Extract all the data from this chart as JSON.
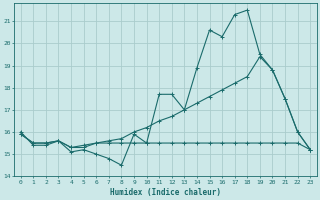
{
  "title": "",
  "xlabel": "Humidex (Indice chaleur)",
  "ylabel": "",
  "bg_color": "#cce8e8",
  "grid_color": "#aacccc",
  "line_color": "#1a6b6b",
  "xlim": [
    -0.5,
    23.5
  ],
  "ylim": [
    14,
    21.8
  ],
  "yticks": [
    14,
    15,
    16,
    17,
    18,
    19,
    20,
    21
  ],
  "xticks": [
    0,
    1,
    2,
    3,
    4,
    5,
    6,
    7,
    8,
    9,
    10,
    11,
    12,
    13,
    14,
    15,
    16,
    17,
    18,
    19,
    20,
    21,
    22,
    23
  ],
  "series1_x": [
    0,
    1,
    2,
    3,
    4,
    5,
    6,
    7,
    8,
    9,
    10,
    11,
    12,
    13,
    14,
    15,
    16,
    17,
    18,
    19,
    20,
    21,
    22,
    23
  ],
  "series1_y": [
    16.0,
    15.4,
    15.4,
    15.6,
    15.1,
    15.2,
    15.0,
    14.8,
    14.5,
    15.9,
    15.5,
    17.7,
    17.7,
    17.0,
    18.9,
    20.6,
    20.3,
    21.3,
    21.5,
    19.5,
    18.8,
    17.5,
    16.0,
    15.2
  ],
  "series2_x": [
    0,
    1,
    2,
    3,
    4,
    5,
    6,
    7,
    8,
    9,
    10,
    11,
    12,
    13,
    14,
    15,
    16,
    17,
    18,
    19,
    20,
    21,
    22,
    23
  ],
  "series2_y": [
    15.9,
    15.5,
    15.5,
    15.6,
    15.3,
    15.4,
    15.5,
    15.6,
    15.7,
    16.0,
    16.2,
    16.5,
    16.7,
    17.0,
    17.3,
    17.6,
    17.9,
    18.2,
    18.5,
    19.4,
    18.8,
    17.5,
    16.0,
    15.2
  ],
  "series3_x": [
    0,
    1,
    2,
    3,
    4,
    5,
    6,
    7,
    8,
    9,
    10,
    11,
    12,
    13,
    14,
    15,
    16,
    17,
    18,
    19,
    20,
    21,
    22,
    23
  ],
  "series3_y": [
    15.9,
    15.5,
    15.5,
    15.6,
    15.3,
    15.3,
    15.5,
    15.5,
    15.5,
    15.5,
    15.5,
    15.5,
    15.5,
    15.5,
    15.5,
    15.5,
    15.5,
    15.5,
    15.5,
    15.5,
    15.5,
    15.5,
    15.5,
    15.2
  ],
  "xlabel_fontsize": 5.5,
  "tick_fontsize": 4.5
}
